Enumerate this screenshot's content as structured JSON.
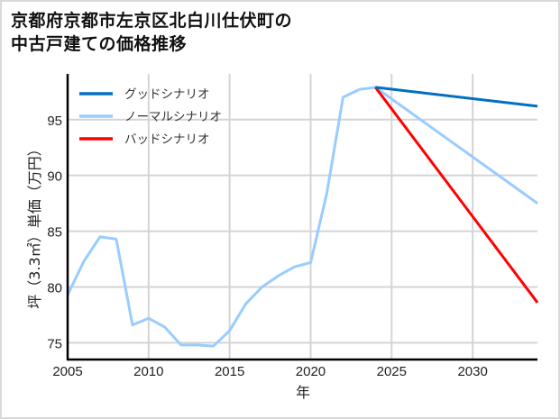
{
  "title": {
    "line1": "京都府京都市左京区北白川仕伏町の",
    "line2": "中古戸建ての価格推移"
  },
  "colors": {
    "good": "#0070C0",
    "normal": "#99CCFF",
    "bad": "#FF0000",
    "grid": "#d4d4d4",
    "axis": "#000000"
  },
  "chart_data": {
    "type": "line",
    "title": "京都府京都市左京区北白川仕伏町の中古戸建ての価格推移",
    "xlabel": "年",
    "ylabel": "坪（3.3㎡）単価（万円）",
    "xlim": [
      2005,
      2034
    ],
    "ylim": [
      73.5,
      99.1
    ],
    "xticks": [
      2005,
      2010,
      2015,
      2020,
      2025,
      2030
    ],
    "yticks": [
      75,
      80,
      85,
      90,
      95
    ],
    "grid": true,
    "legend_position": "upper left",
    "series": [
      {
        "name": "グッドシナリオ",
        "color": "#0070C0",
        "x": [
          2024,
          2034
        ],
        "values": [
          97.9,
          96.2
        ]
      },
      {
        "name": "ノーマルシナリオ",
        "color": "#99CCFF",
        "x": [
          2005,
          2006,
          2007,
          2008,
          2009,
          2010,
          2011,
          2012,
          2013,
          2014,
          2015,
          2016,
          2017,
          2018,
          2019,
          2020,
          2021,
          2022,
          2023,
          2024,
          2034
        ],
        "values": [
          79.3,
          82.3,
          84.5,
          84.3,
          76.6,
          77.2,
          76.4,
          74.8,
          74.8,
          74.7,
          76.1,
          78.5,
          80.0,
          81.0,
          81.8,
          82.2,
          88.4,
          97.0,
          97.7,
          97.9,
          87.5
        ]
      },
      {
        "name": "バッドシナリオ",
        "color": "#FF0000",
        "x": [
          2024,
          2034
        ],
        "values": [
          97.9,
          78.6
        ]
      }
    ]
  }
}
